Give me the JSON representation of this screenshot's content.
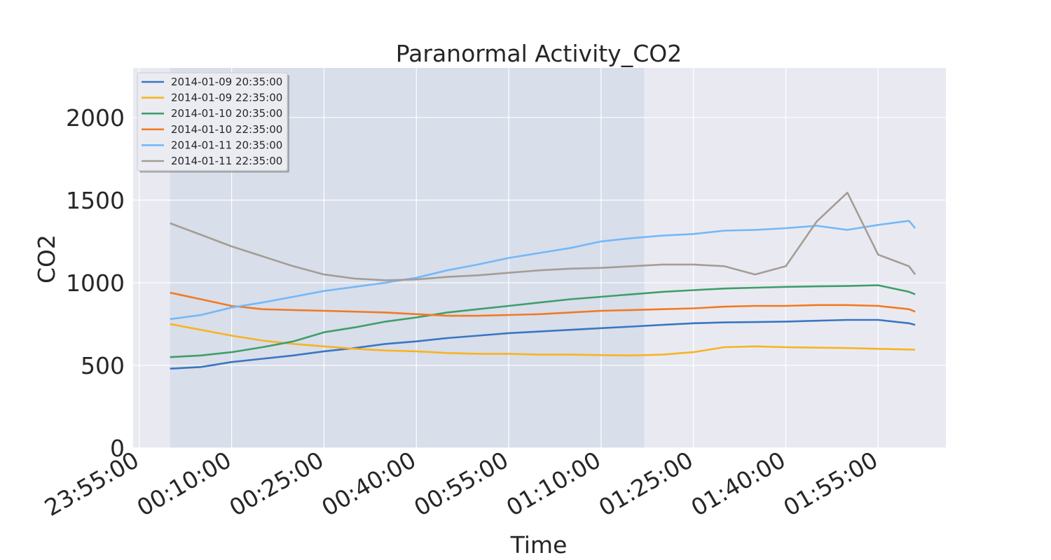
{
  "chart_data": {
    "type": "line",
    "title": "Paranormal Activity_CO2",
    "xlabel": "Time",
    "ylabel": "CO2",
    "x_ticks": [
      "23:55:00",
      "00:10:00",
      "00:25:00",
      "00:40:00",
      "00:55:00",
      "01:10:00",
      "01:25:00",
      "01:40:00",
      "01:55:00"
    ],
    "y_ticks": [
      0,
      500,
      1000,
      1500,
      2000
    ],
    "ylim": [
      0,
      2300
    ],
    "xlim": [
      "23:54:00",
      "02:06:00"
    ],
    "highlight_range": [
      "00:00:00",
      "01:17:00"
    ],
    "grid": true,
    "legend_position": "top-left",
    "x": [
      "00:00",
      "00:05",
      "00:10",
      "00:15",
      "00:20",
      "00:25",
      "00:30",
      "00:35",
      "00:40",
      "00:45",
      "00:50",
      "00:55",
      "01:00",
      "01:05",
      "01:10",
      "01:15",
      "01:20",
      "01:25",
      "01:30",
      "01:35",
      "01:40",
      "01:45",
      "01:50",
      "01:55",
      "02:00",
      "02:01"
    ],
    "series": [
      {
        "name": "2014-01-09 20:35:00",
        "color": "#3a76c3",
        "values": [
          480,
          490,
          520,
          540,
          560,
          585,
          605,
          630,
          645,
          665,
          680,
          695,
          705,
          715,
          725,
          735,
          745,
          755,
          760,
          762,
          765,
          770,
          775,
          775,
          755,
          745
        ]
      },
      {
        "name": "2014-01-09 22:35:00",
        "color": "#f8b322",
        "values": [
          750,
          715,
          680,
          650,
          630,
          615,
          600,
          590,
          585,
          575,
          570,
          570,
          565,
          565,
          562,
          560,
          565,
          580,
          610,
          615,
          610,
          607,
          605,
          600,
          596,
          595
        ]
      },
      {
        "name": "2014-01-10 20:35:00",
        "color": "#3f9e6a",
        "values": [
          550,
          560,
          580,
          610,
          645,
          700,
          730,
          765,
          790,
          820,
          840,
          860,
          880,
          900,
          915,
          930,
          945,
          955,
          965,
          970,
          975,
          978,
          980,
          985,
          945,
          930
        ]
      },
      {
        "name": "2014-01-10 22:35:00",
        "color": "#f47920",
        "values": [
          940,
          900,
          860,
          840,
          835,
          830,
          825,
          820,
          810,
          800,
          800,
          805,
          810,
          820,
          830,
          835,
          840,
          845,
          855,
          860,
          860,
          865,
          865,
          860,
          840,
          825
        ]
      },
      {
        "name": "2014-01-11 20:35:00",
        "color": "#74b8f8",
        "values": [
          780,
          805,
          850,
          880,
          915,
          950,
          975,
          1000,
          1030,
          1075,
          1110,
          1150,
          1180,
          1210,
          1250,
          1270,
          1285,
          1295,
          1315,
          1320,
          1330,
          1345,
          1320,
          1350,
          1375,
          1330
        ]
      },
      {
        "name": "2014-01-11 22:35:00",
        "color": "#a49d94",
        "values": [
          1360,
          1290,
          1220,
          1160,
          1100,
          1050,
          1025,
          1015,
          1020,
          1035,
          1045,
          1060,
          1075,
          1085,
          1090,
          1100,
          1110,
          1110,
          1100,
          1050,
          1100,
          1370,
          1545,
          1170,
          1100,
          1050
        ]
      }
    ]
  }
}
